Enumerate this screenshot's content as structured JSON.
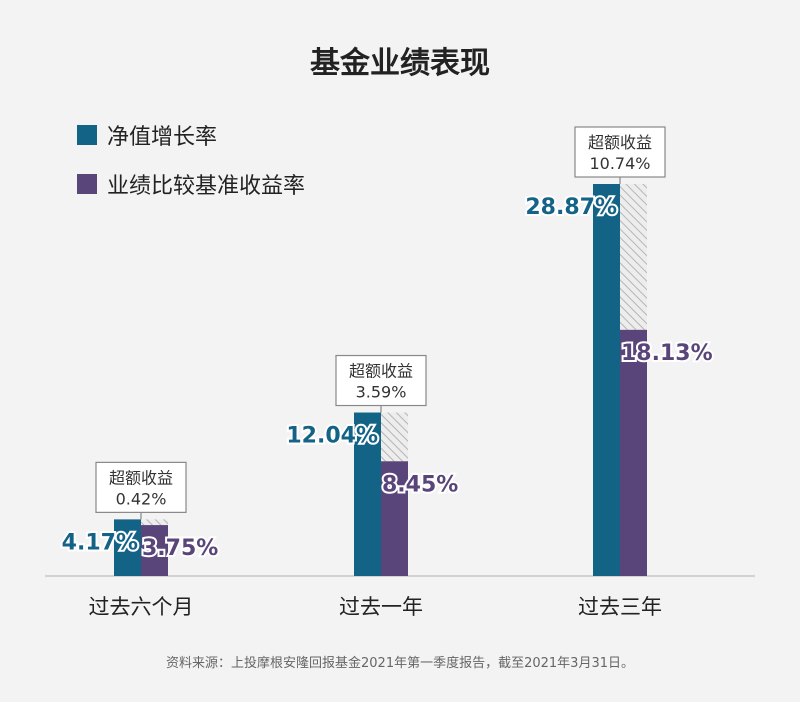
{
  "chart_data": {
    "type": "bar",
    "title": "基金业绩表现",
    "categories": [
      "过去六个月",
      "过去一年",
      "过去三年"
    ],
    "series": [
      {
        "name": "净值增长率",
        "color": "#136387",
        "values": [
          4.17,
          12.04,
          28.87
        ],
        "labels": [
          "4.17%",
          "12.04%",
          "28.87%"
        ]
      },
      {
        "name": "业绩比较基准收益率",
        "color": "#59457a",
        "values": [
          3.75,
          8.45,
          18.13
        ],
        "labels": [
          "3.75%",
          "8.45%",
          "18.13%"
        ]
      }
    ],
    "excess": {
      "title": "超额收益",
      "values": [
        0.42,
        3.59,
        10.74
      ],
      "labels": [
        "0.42%",
        "3.59%",
        "10.74%"
      ]
    },
    "ylim": [
      0,
      28.87
    ],
    "grid": false,
    "legend": "top-left"
  },
  "source": "资料来源：上投摩根安隆回报基金2021年第一季度报告，截至2021年3月31日。"
}
